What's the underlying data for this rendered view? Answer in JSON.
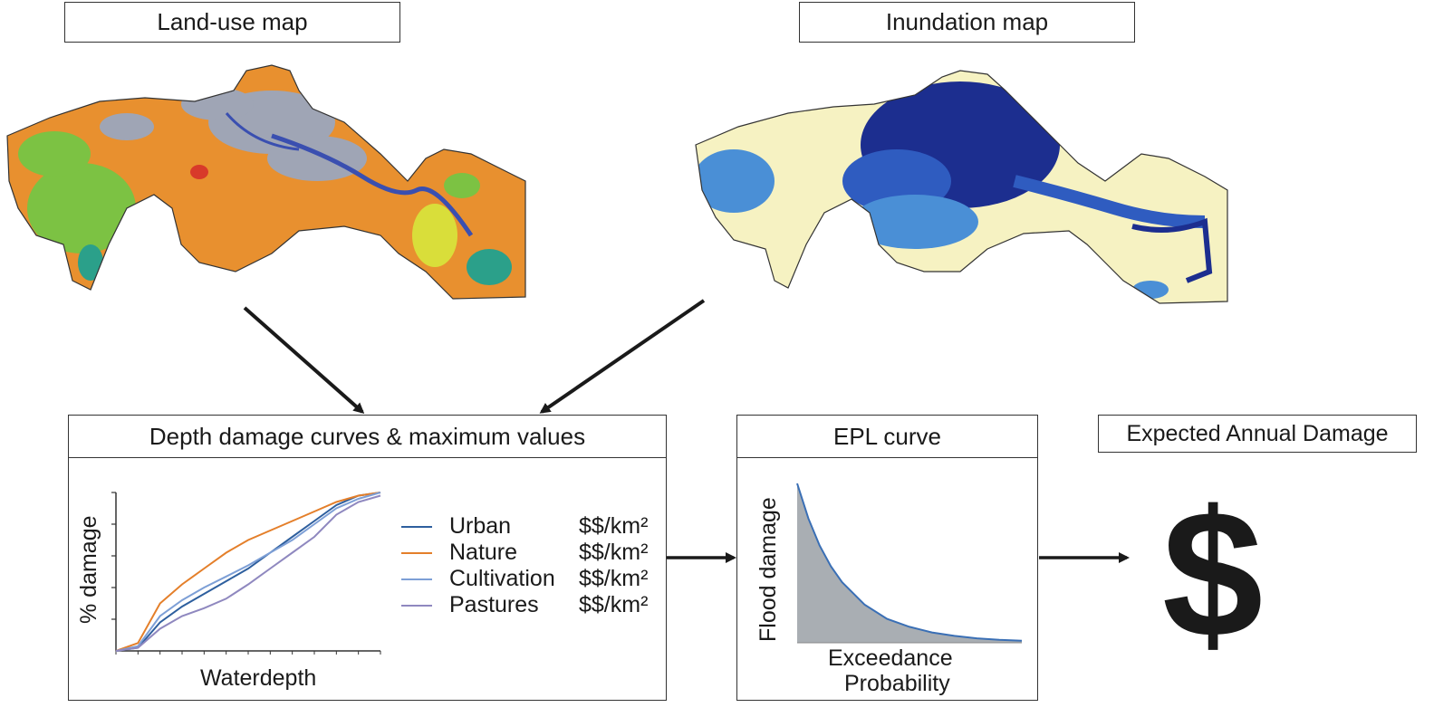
{
  "landuse": {
    "title": "Land-use map"
  },
  "inundation": {
    "title": "Inundation map"
  },
  "depth_panel": {
    "title": "Depth damage curves & maximum values",
    "ylabel": "% damage",
    "xlabel": "Waterdepth",
    "legend": [
      {
        "name": "Urban",
        "value": "$$/km²",
        "color": "#2e5f9e"
      },
      {
        "name": "Nature",
        "value": "$$/km²",
        "color": "#e47f2a"
      },
      {
        "name": "Cultivation",
        "value": "$$/km²",
        "color": "#7d9fd6"
      },
      {
        "name": "Pastures",
        "value": "$$/km²",
        "color": "#8f88bf"
      }
    ]
  },
  "epl_panel": {
    "title": "EPL curve",
    "ylabel": "Flood damage",
    "xlabel_line1": "Exceedance",
    "xlabel_line2": "Probability"
  },
  "ead": {
    "title": "Expected Annual Damage",
    "symbol": "$"
  },
  "colors": {
    "urban": "#2e5f9e",
    "nature": "#e47f2a",
    "cultivation": "#7d9fd6",
    "pastures": "#8f88bf",
    "land_orange": "#e8902f",
    "land_gray": "#9fa5b5",
    "land_green": "#7cc243",
    "inund_base": "#f6f2c2",
    "inund_dark": "#1c2e8f",
    "inund_mid": "#2f5cc0",
    "inund_light": "#4a8fd6",
    "epl_fill": "#a9aeb3",
    "epl_line": "#3a6fb5"
  },
  "chart_data": [
    {
      "type": "line",
      "xlabel": "Waterdepth",
      "ylabel": "% damage",
      "x": [
        0,
        1,
        2,
        3,
        4,
        5,
        6,
        7,
        8,
        9,
        10,
        11,
        12
      ],
      "series": [
        {
          "name": "Urban",
          "values": [
            0,
            2,
            18,
            28,
            36,
            44,
            52,
            62,
            72,
            82,
            92,
            98,
            100
          ]
        },
        {
          "name": "Nature",
          "values": [
            0,
            5,
            30,
            42,
            52,
            62,
            70,
            76,
            82,
            88,
            94,
            98,
            100
          ]
        },
        {
          "name": "Cultivation",
          "values": [
            0,
            3,
            22,
            32,
            40,
            47,
            54,
            62,
            70,
            80,
            90,
            96,
            100
          ]
        },
        {
          "name": "Pastures",
          "values": [
            0,
            2,
            14,
            22,
            27,
            33,
            42,
            52,
            62,
            72,
            86,
            94,
            98
          ]
        }
      ]
    },
    {
      "type": "area",
      "xlabel": "Exceedance Probability",
      "ylabel": "Flood damage",
      "x": [
        0,
        0.05,
        0.1,
        0.15,
        0.2,
        0.3,
        0.4,
        0.5,
        0.6,
        0.7,
        0.8,
        0.9,
        1.0
      ],
      "series": [
        {
          "values": [
            100,
            78,
            61,
            48,
            38,
            24,
            15,
            10,
            6.5,
            4.3,
            2.8,
            1.9,
            1.3
          ]
        }
      ]
    }
  ]
}
